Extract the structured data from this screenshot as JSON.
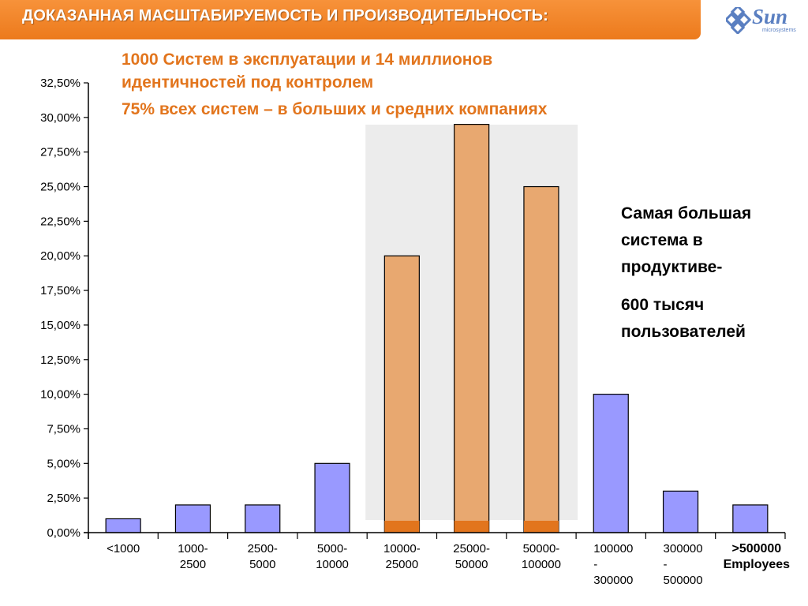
{
  "header": {
    "title": "ДОКАЗАННАЯ МАСШТАБИРУЕМОСТЬ И ПРОИЗВОДИТЕЛЬНОСТЬ:",
    "logo_text": "Sun",
    "logo_subtext": "microsystems"
  },
  "headline": {
    "line1": "1000   Систем  в эксплуатации и 14 миллионов",
    "line2": "идентичностей под контролем",
    "line3": "75% всех систем  – в больших и средних компаниях"
  },
  "side_note": {
    "line1": "Самая большая",
    "line2": "система в",
    "line3": "продуктиве-",
    "line4": "600 тысяч",
    "line5": "пользователей"
  },
  "chart_data": {
    "type": "bar",
    "categories": [
      [
        "<1000"
      ],
      [
        "1000-",
        "2500"
      ],
      [
        "2500-",
        "5000"
      ],
      [
        "5000-",
        "10000"
      ],
      [
        "10000-",
        "25000"
      ],
      [
        "25000-",
        "50000"
      ],
      [
        "50000-",
        "100000"
      ],
      [
        "100000",
        "-",
        "300000"
      ],
      [
        "300000",
        "-",
        "500000"
      ],
      [
        ">500000",
        "Employees"
      ]
    ],
    "values": [
      1.0,
      2.0,
      2.0,
      5.0,
      20.0,
      29.5,
      25.0,
      10.0,
      3.0,
      2.0
    ],
    "highlighted_categories": [
      4,
      5,
      6
    ],
    "ylim": [
      0,
      32.5
    ],
    "yticks": [
      "0,00%",
      "2,50%",
      "5,00%",
      "7,50%",
      "10,00%",
      "12,50%",
      "15,00%",
      "17,50%",
      "20,00%",
      "22,50%",
      "25,00%",
      "27,50%",
      "30,00%",
      "32,50%"
    ],
    "ytick_step": 2.5,
    "grid": false,
    "colors": {
      "bar": "#9999ff",
      "highlight_bar": "#e8a870",
      "highlight_base": "#e2751d",
      "highlight_band": "#ececec"
    }
  }
}
